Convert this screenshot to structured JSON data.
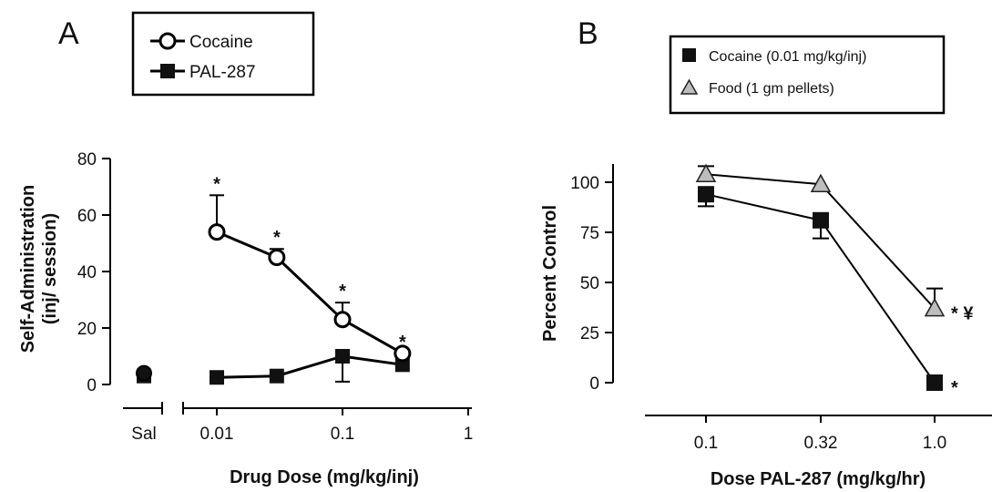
{
  "panels": {
    "a": {
      "letter": "A"
    },
    "b": {
      "letter": "B"
    }
  },
  "chart_data": [
    {
      "panel": "A",
      "type": "line",
      "xscale": "log",
      "x_ticks": [
        "0.01",
        "0.1",
        "1"
      ],
      "x_tick_values": [
        0.01,
        0.1,
        1
      ],
      "extra_category": "Sal",
      "xlabel": "Drug Dose (mg/kg/inj)",
      "ylabel": "Self-Administration",
      "ylabel_line2": "(inj/ session)",
      "ylim": [
        0,
        80
      ],
      "y_ticks": [
        "0",
        "20",
        "40",
        "60",
        "80"
      ],
      "y_tick_values": [
        0,
        20,
        40,
        60,
        80
      ],
      "legend": [
        {
          "name": "Cocaine",
          "marker": "open-circle"
        },
        {
          "name": "PAL-287",
          "marker": "filled-square"
        }
      ],
      "series": [
        {
          "name": "Cocaine",
          "marker": "open-circle",
          "sal": 4,
          "x": [
            0.01,
            0.03,
            0.1,
            0.3
          ],
          "values": [
            54,
            45,
            23,
            11
          ],
          "error_upper": [
            13,
            3,
            6,
            0
          ],
          "annotations": [
            "*",
            "*",
            "*",
            "*"
          ]
        },
        {
          "name": "PAL-287",
          "marker": "filled-square",
          "sal": 3,
          "x": [
            0.01,
            0.03,
            0.1,
            0.3
          ],
          "values": [
            2.5,
            3,
            10,
            7
          ],
          "error_lower": [
            0,
            0,
            9,
            0
          ],
          "annotations": []
        }
      ]
    },
    {
      "panel": "B",
      "type": "line",
      "categories": [
        "0.1",
        "0.32",
        "1.0"
      ],
      "xlabel": "Dose PAL-287 (mg/kg/hr)",
      "ylabel": "Percent Control",
      "ylim": [
        0,
        110
      ],
      "y_ticks": [
        "0",
        "25",
        "50",
        "75",
        "100"
      ],
      "y_tick_values": [
        0,
        25,
        50,
        75,
        100
      ],
      "legend": [
        {
          "name": "Cocaine (0.01 mg/kg/inj)",
          "marker": "filled-square"
        },
        {
          "name": "Food (1 gm pellets)",
          "marker": "gray-triangle"
        }
      ],
      "series": [
        {
          "name": "Cocaine (0.01 mg/kg/inj)",
          "marker": "filled-square",
          "values": [
            94,
            81,
            0
          ],
          "error_lower": [
            6,
            9,
            0
          ],
          "annotations": [
            "",
            "",
            "*"
          ]
        },
        {
          "name": "Food (1 gm pellets)",
          "marker": "gray-triangle",
          "values": [
            104,
            99,
            37
          ],
          "error_upper": [
            4,
            0,
            10
          ],
          "annotations": [
            "",
            "",
            "* ¥"
          ]
        }
      ]
    }
  ]
}
